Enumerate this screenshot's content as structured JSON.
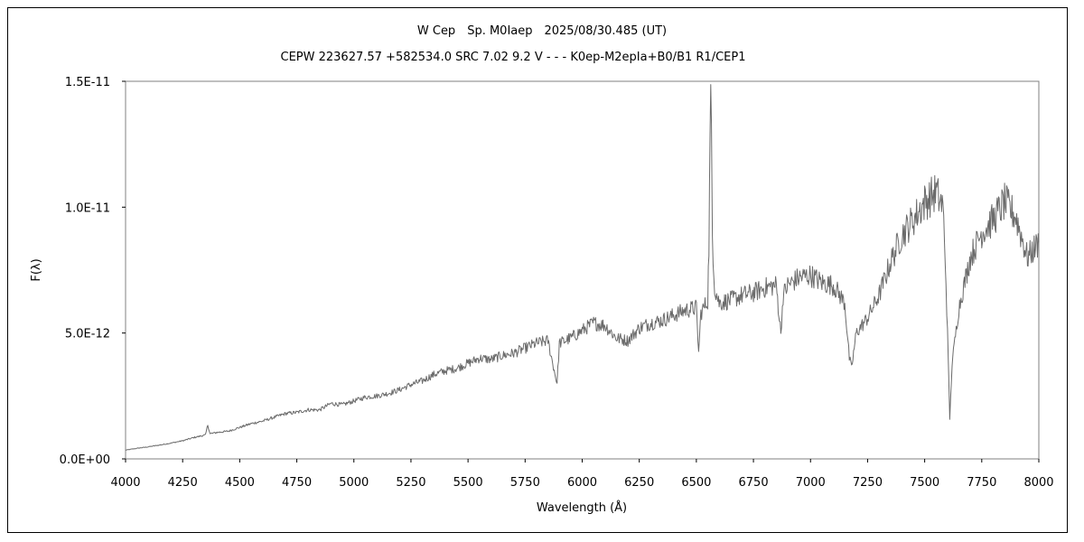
{
  "chart_data": {
    "type": "line",
    "title": "W Cep　Sp. M0Iaep　2025/08/30.485 (UT)",
    "subtitle": "CEPW 223627.57 +582534.0 SRC 7.02 9.2 V - - - K0ep-M2epIa+B0/B1 R1/CEP1",
    "xlabel": "Wavelength (Å)",
    "ylabel": "F(λ)",
    "xlim": [
      4000,
      8000
    ],
    "ylim": [
      0,
      1.5e-11
    ],
    "x_ticks": [
      "4000",
      "4250",
      "4500",
      "4750",
      "5000",
      "5250",
      "5500",
      "5750",
      "6000",
      "6250",
      "6500",
      "6750",
      "7000",
      "7250",
      "7500",
      "7750",
      "8000"
    ],
    "y_ticks": [
      "0.0E+00",
      "5.0E-12",
      "1.0E-11",
      "1.5E-11"
    ],
    "grid": false,
    "legend": "none",
    "series": [
      {
        "color": "#6b6b6b",
        "x": [
          4000,
          4050,
          4100,
          4150,
          4200,
          4250,
          4300,
          4350,
          4360,
          4370,
          4400,
          4450,
          4500,
          4550,
          4600,
          4650,
          4700,
          4750,
          4800,
          4850,
          4900,
          4950,
          5000,
          5050,
          5100,
          5150,
          5200,
          5250,
          5300,
          5350,
          5400,
          5450,
          5500,
          5550,
          5600,
          5650,
          5700,
          5750,
          5800,
          5850,
          5880,
          5890,
          5900,
          5950,
          6000,
          6050,
          6100,
          6150,
          6200,
          6250,
          6300,
          6350,
          6400,
          6450,
          6500,
          6510,
          6520,
          6550,
          6555,
          6560,
          6563,
          6566,
          6570,
          6580,
          6600,
          6650,
          6700,
          6750,
          6800,
          6850,
          6870,
          6880,
          6900,
          6950,
          7000,
          7050,
          7100,
          7150,
          7170,
          7180,
          7200,
          7250,
          7300,
          7350,
          7400,
          7450,
          7500,
          7550,
          7580,
          7590,
          7600,
          7610,
          7620,
          7650,
          7700,
          7750,
          7800,
          7850,
          7900,
          7950,
          8000
        ],
        "values": [
          3.5e-13,
          4.2e-13,
          4.8e-13,
          5.5e-13,
          6.3e-13,
          7.2e-13,
          8.5e-13,
          9.5e-13,
          1.35e-12,
          1e-12,
          1.05e-12,
          1.1e-12,
          1.25e-12,
          1.4e-12,
          1.5e-12,
          1.65e-12,
          1.8e-12,
          1.85e-12,
          1.95e-12,
          1.95e-12,
          2.2e-12,
          2.15e-12,
          2.3e-12,
          2.45e-12,
          2.5e-12,
          2.6e-12,
          2.75e-12,
          2.95e-12,
          3.1e-12,
          3.35e-12,
          3.5e-12,
          3.6e-12,
          3.8e-12,
          4e-12,
          3.95e-12,
          4.1e-12,
          4.2e-12,
          4.4e-12,
          4.6e-12,
          4.7e-12,
          3.4e-12,
          3e-12,
          4.6e-12,
          4.8e-12,
          5.1e-12,
          5.4e-12,
          5.3e-12,
          4.8e-12,
          4.7e-12,
          5.2e-12,
          5.4e-12,
          5.5e-12,
          5.7e-12,
          5.9e-12,
          6e-12,
          4.2e-12,
          5.8e-12,
          6.3e-12,
          8.5e-12,
          1.25e-11,
          1.38e-11,
          1.3e-11,
          9e-12,
          6.8e-12,
          6.2e-12,
          6.3e-12,
          6.5e-12,
          6.6e-12,
          6.8e-12,
          6.9e-12,
          5e-12,
          6.5e-12,
          6.9e-12,
          7.2e-12,
          7.3e-12,
          7e-12,
          6.9e-12,
          6.2e-12,
          4e-12,
          3.6e-12,
          5e-12,
          5.6e-12,
          6.5e-12,
          7.8e-12,
          8.9e-12,
          9.5e-12,
          1.02e-11,
          1.06e-11,
          1e-11,
          8e-12,
          5e-12,
          1.6e-12,
          3.8e-12,
          6e-12,
          8e-12,
          9e-12,
          9.5e-12,
          1.02e-11,
          9.6e-12,
          8e-12,
          8.6e-12
        ]
      }
    ]
  }
}
